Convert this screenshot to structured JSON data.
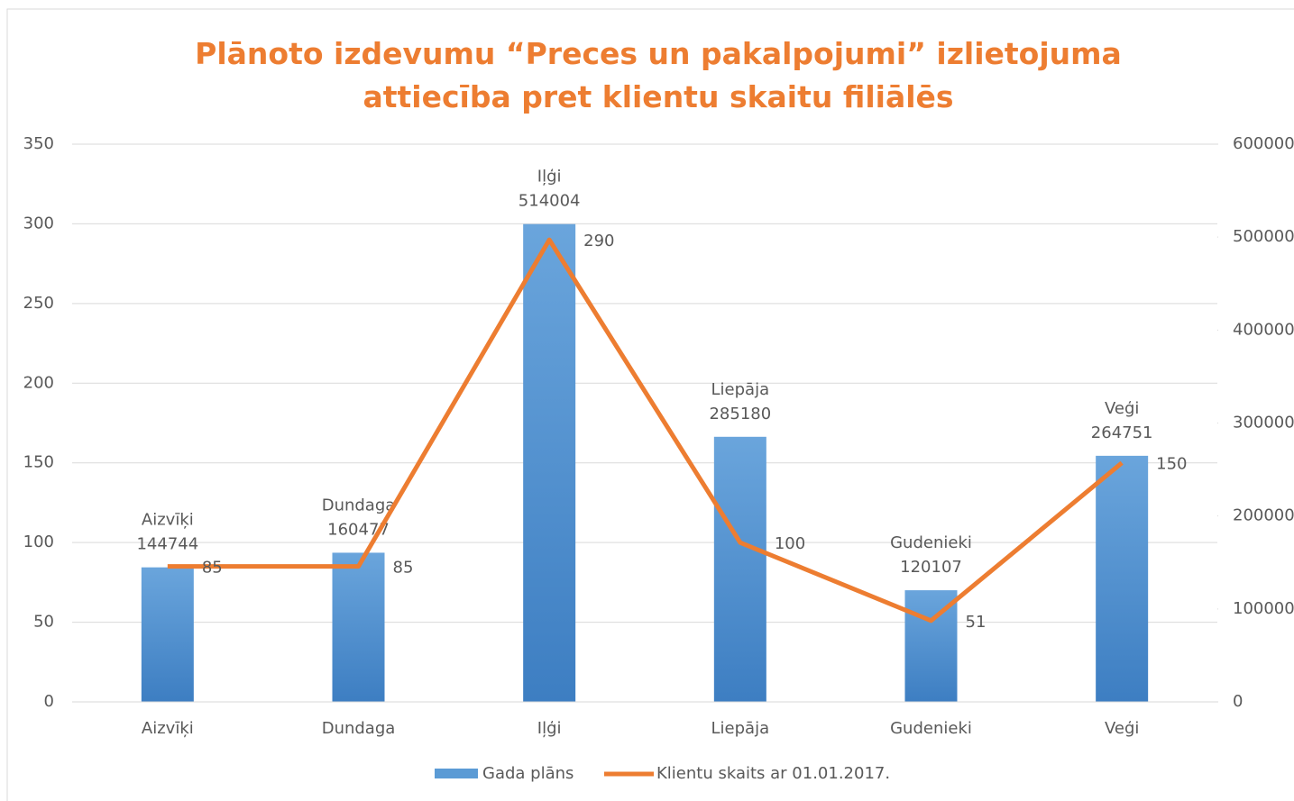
{
  "chart_data": {
    "type": "bar_line",
    "title": "Plānoto izdevumu “Preces un pakalpojumi” izlietojuma attiecība pret klientu skaitu filiālēs",
    "categories": [
      "Aizvīķi",
      "Dundaga",
      "Iļģi",
      "Liepāja",
      "Gudenieki",
      "Veģi"
    ],
    "series": [
      {
        "name": "Gada plāns",
        "color": "#5b9bd5",
        "type": "bar",
        "axis": "y2",
        "values": [
          144744,
          160477,
          514004,
          285180,
          120107,
          264751
        ]
      },
      {
        "name": "Klientu skaits ar 01.01.2017.",
        "color": "#ed7d31",
        "type": "line",
        "axis": "y",
        "values": [
          85,
          85,
          290,
          100,
          51,
          150
        ]
      }
    ],
    "ylim": [
      0,
      350
    ],
    "yticks": [
      0,
      50,
      100,
      150,
      200,
      250,
      300,
      350
    ],
    "y2lim": [
      0,
      600000
    ],
    "y2ticks": [
      0,
      100000,
      200000,
      300000,
      400000,
      500000,
      600000
    ],
    "grid": true,
    "legend": "bottom"
  }
}
